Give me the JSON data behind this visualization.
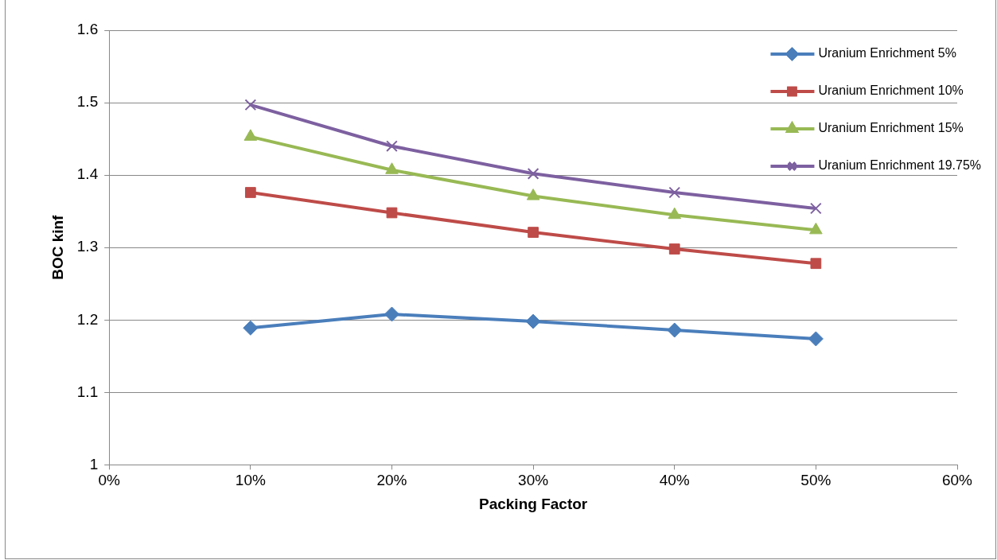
{
  "chart_data": {
    "type": "line",
    "xlabel": "Packing Factor",
    "ylabel": "BOC kinf",
    "x": [
      10,
      20,
      30,
      40,
      50
    ],
    "series": [
      {
        "name": "Uranium Enrichment 5%",
        "color": "#4a7ebb",
        "marker": "diamond",
        "values": [
          1.189,
          1.208,
          1.198,
          1.186,
          1.174
        ]
      },
      {
        "name": "Uranium Enrichment 10%",
        "color": "#be4b48",
        "marker": "square",
        "values": [
          1.376,
          1.348,
          1.321,
          1.298,
          1.278
        ]
      },
      {
        "name": "Uranium Enrichment 15%",
        "color": "#98b954",
        "marker": "triangle",
        "values": [
          1.453,
          1.407,
          1.371,
          1.345,
          1.324
        ]
      },
      {
        "name": "Uranium Enrichment 19.75%",
        "color": "#7d60a0",
        "marker": "cross",
        "values": [
          1.497,
          1.44,
          1.402,
          1.376,
          1.354
        ]
      }
    ],
    "xlim": [
      0,
      60
    ],
    "xticks": [
      {
        "value": 0,
        "label": "0%"
      },
      {
        "value": 10,
        "label": "10%"
      },
      {
        "value": 20,
        "label": "20%"
      },
      {
        "value": 30,
        "label": "30%"
      },
      {
        "value": 40,
        "label": "40%"
      },
      {
        "value": 50,
        "label": "50%"
      },
      {
        "value": 60,
        "label": "60%"
      }
    ],
    "ylim": [
      1,
      1.6
    ],
    "yticks": [
      {
        "value": 1,
        "label": "1"
      },
      1.1,
      1.2,
      1.3,
      1.4,
      1.5,
      1.6
    ],
    "grid": "y",
    "legend": "top right"
  }
}
